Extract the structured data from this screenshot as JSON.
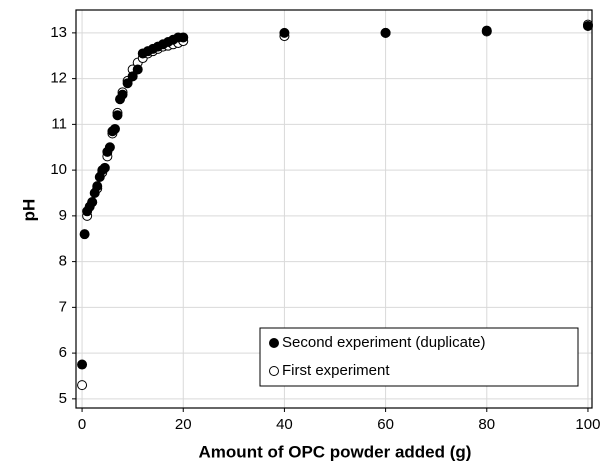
{
  "chart_data": {
    "type": "scatter",
    "x_label": "Amount of OPC powder added (g)",
    "y_label": "pH",
    "xlim": [
      -1.2,
      100.8
    ],
    "ylim": [
      4.8,
      13.5
    ],
    "xticks": [
      0,
      20,
      40,
      60,
      80,
      100
    ],
    "yticks": [
      5,
      6,
      7,
      8,
      9,
      10,
      11,
      12,
      13
    ],
    "grid": true,
    "legend": "lower right",
    "series": [
      {
        "name": "Second experiment (duplicate)",
        "color": "#000000",
        "marker_fill": "#000000",
        "x": [
          0,
          0.5,
          1,
          1.5,
          2,
          2.5,
          3,
          3.5,
          4,
          4.5,
          5,
          5.5,
          6,
          6.5,
          7,
          7.5,
          8,
          9,
          10,
          11,
          12,
          13,
          14,
          15,
          16,
          17,
          18,
          19,
          20,
          40,
          60,
          80,
          100
        ],
        "values": [
          5.75,
          8.6,
          9.1,
          9.2,
          9.3,
          9.5,
          9.65,
          9.85,
          10.0,
          10.05,
          10.4,
          10.5,
          10.85,
          10.9,
          11.2,
          11.55,
          11.65,
          11.9,
          12.05,
          12.2,
          12.55,
          12.6,
          12.65,
          12.7,
          12.75,
          12.8,
          12.85,
          12.9,
          12.9,
          13.0,
          13.0,
          13.05,
          13.15
        ]
      },
      {
        "name": "First experiment",
        "color": "#000000",
        "marker_fill": "#ffffff",
        "x": [
          0,
          1,
          2,
          3,
          4,
          5,
          6,
          7,
          8,
          9,
          10,
          11,
          12,
          13,
          14,
          15,
          16,
          17,
          18,
          19,
          20,
          40,
          60,
          80,
          100
        ],
        "values": [
          5.3,
          9.0,
          9.3,
          9.6,
          9.95,
          10.3,
          10.8,
          11.25,
          11.7,
          11.95,
          12.2,
          12.35,
          12.45,
          12.55,
          12.6,
          12.65,
          12.7,
          12.72,
          12.75,
          12.78,
          12.82,
          12.93,
          13.0,
          13.03,
          13.18
        ]
      }
    ]
  }
}
